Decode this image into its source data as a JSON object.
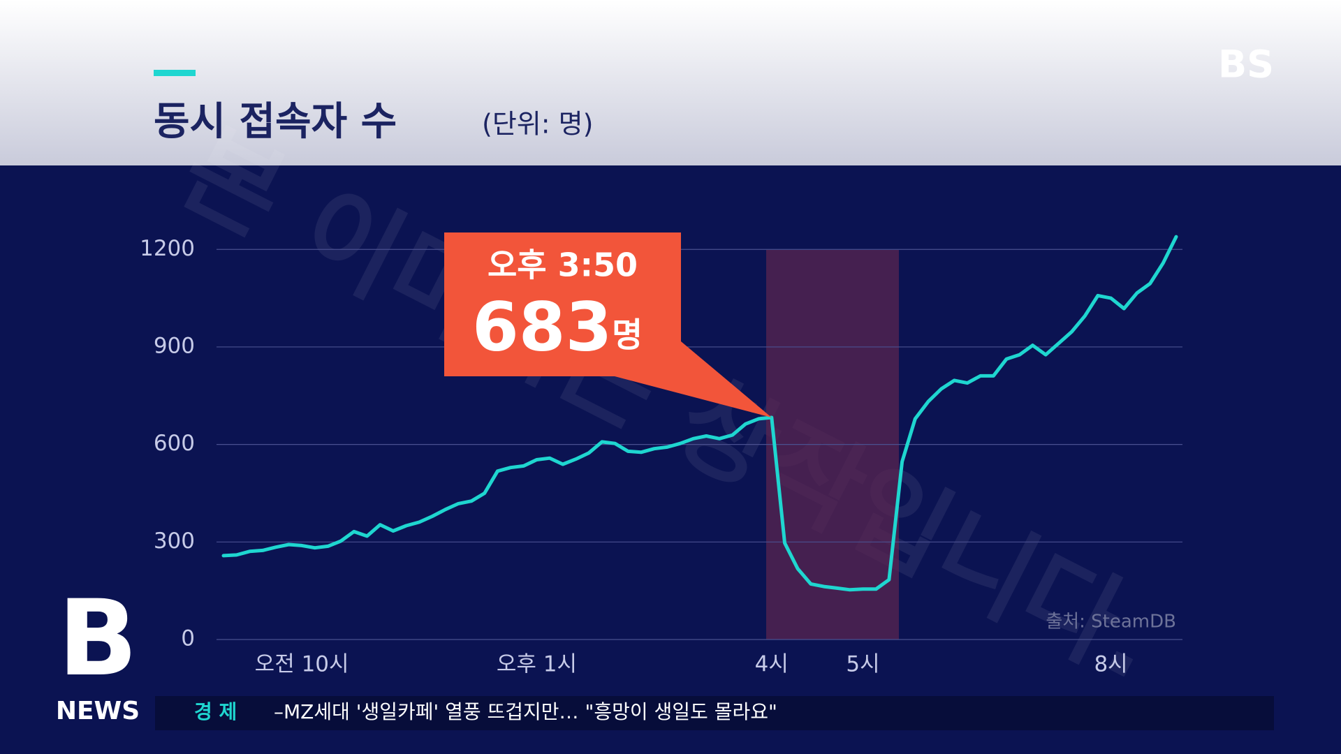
{
  "header": {
    "logo": "BS"
  },
  "watermark": "본 이미지는 창작입니다.",
  "brand": {
    "mark": "B",
    "name": "NEWS"
  },
  "ticker": {
    "section": "경 제",
    "headline": "–MZ세대 '생일카페' 열풍 뜨겁지만… \"흥망이 생일도 몰라요\""
  },
  "chart_data": {
    "type": "line",
    "title": "동시 접속자 수",
    "subtitle": "(단위: 명)",
    "source": "출처: SteamDB",
    "color": "#1fd6d0",
    "grid": true,
    "ylim": [
      0,
      1250
    ],
    "yticks": [
      0,
      300,
      600,
      900,
      1200
    ],
    "categories": [
      null,
      null,
      null,
      null,
      null,
      null,
      "오전 10시",
      null,
      null,
      null,
      null,
      null,
      null,
      null,
      null,
      null,
      null,
      null,
      null,
      null,
      null,
      null,
      null,
      null,
      "오후 1시",
      null,
      null,
      null,
      null,
      null,
      null,
      null,
      null,
      null,
      null,
      null,
      null,
      null,
      null,
      null,
      null,
      null,
      "4시",
      null,
      null,
      null,
      null,
      null,
      null,
      "5시",
      null,
      null,
      null,
      null,
      null,
      null,
      null,
      null,
      null,
      null,
      null,
      null,
      null,
      null,
      null,
      null,
      null,
      null,
      "8시",
      null,
      null,
      null,
      null,
      null
    ],
    "values": [
      258,
      260,
      271,
      274,
      284,
      292,
      289,
      282,
      287,
      303,
      332,
      318,
      353,
      334,
      350,
      361,
      379,
      400,
      418,
      426,
      450,
      518,
      529,
      534,
      553,
      558,
      539,
      555,
      574,
      608,
      603,
      579,
      576,
      587,
      592,
      603,
      618,
      626,
      618,
      629,
      663,
      679,
      683,
      297,
      218,
      171,
      163,
      158,
      153,
      155,
      155,
      184,
      547,
      679,
      732,
      771,
      797,
      789,
      811,
      811,
      863,
      876,
      905,
      876,
      911,
      947,
      995,
      1058,
      1050,
      1018,
      1066,
      1095,
      1158,
      1239
    ],
    "annotation": {
      "time": "오후 3:50",
      "value": 683,
      "unit": "명"
    }
  }
}
